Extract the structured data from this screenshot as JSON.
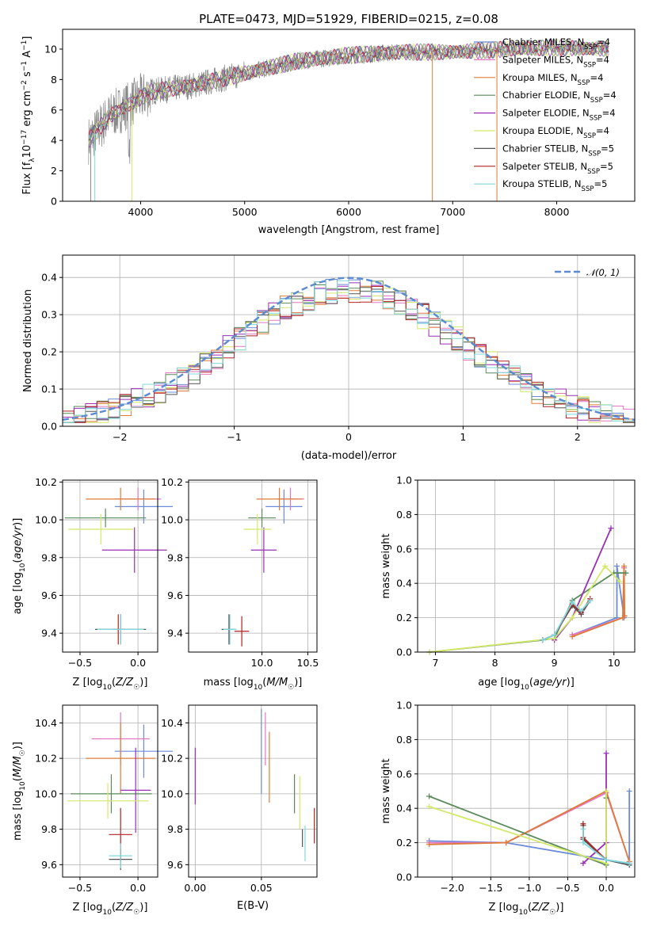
{
  "title": "PLATE=0473, MJD=51929, FIBERID=0215, z=0.08",
  "colors": {
    "chabrier_miles": "#6b8bd9",
    "salpeter_miles": "#e377c2",
    "kroupa_miles": "#e07b39",
    "chabrier_elodie": "#5a8a5a",
    "salpeter_elodie": "#9a2fb5",
    "kroupa_elodie": "#d4e86a",
    "chabrier_stelib": "#555555",
    "salpeter_stelib": "#b22222",
    "kroupa_stelib": "#80d8dc",
    "data": "#888888",
    "normal": "#5b8bd0"
  },
  "chart_data": [
    {
      "id": "spectrum",
      "type": "line",
      "xlabel": "wavelength [Angstrom, rest frame]",
      "ylabel": "Flux [f_λ10^-17 erg cm^-2 s^-1 A^-1]",
      "xlim": [
        3250,
        8750
      ],
      "ylim": [
        0,
        11.3
      ],
      "xticks": [
        "4000",
        "5000",
        "6000",
        "7000",
        "8000"
      ],
      "yticks": [
        "0",
        "2",
        "4",
        "6",
        "8",
        "10"
      ],
      "legend_position": "top-right",
      "legend": [
        {
          "base": "Chabrier MILES, N",
          "sub": "SSP",
          "tail": "=4",
          "color_key": "chabrier_miles"
        },
        {
          "base": "Salpeter MILES, N",
          "sub": "SSP",
          "tail": "=4",
          "color_key": "salpeter_miles"
        },
        {
          "base": "Kroupa MILES, N",
          "sub": "SSP",
          "tail": "=4",
          "color_key": "kroupa_miles"
        },
        {
          "base": "Chabrier ELODIE, N",
          "sub": "SSP",
          "tail": "=4",
          "color_key": "chabrier_elodie"
        },
        {
          "base": "Salpeter ELODIE, N",
          "sub": "SSP",
          "tail": "=4",
          "color_key": "salpeter_elodie"
        },
        {
          "base": "Kroupa ELODIE, N",
          "sub": "SSP",
          "tail": "=4",
          "color_key": "kroupa_elodie"
        },
        {
          "base": "Chabrier STELIB, N",
          "sub": "SSP",
          "tail": "=5",
          "color_key": "chabrier_stelib"
        },
        {
          "base": "Salpeter STELIB, N",
          "sub": "SSP",
          "tail": "=5",
          "color_key": "salpeter_stelib"
        },
        {
          "base": "Kroupa STELIB, N",
          "sub": "SSP",
          "tail": "=5",
          "color_key": "kroupa_stelib"
        }
      ],
      "data_range": [
        3500,
        8500
      ],
      "continuum": [
        [
          3500,
          4.0
        ],
        [
          3700,
          5.6
        ],
        [
          3950,
          6.6
        ],
        [
          4100,
          7.2
        ],
        [
          4500,
          7.6
        ],
        [
          5000,
          8.4
        ],
        [
          5500,
          9.2
        ],
        [
          6000,
          9.6
        ],
        [
          6500,
          9.8
        ],
        [
          7000,
          9.8
        ],
        [
          7500,
          10.0
        ],
        [
          8000,
          10.1
        ],
        [
          8500,
          10.0
        ]
      ]
    },
    {
      "id": "residuals",
      "type": "line",
      "xlabel": "(data-model)/error",
      "ylabel": "Normed distribution",
      "xlim": [
        -2.5,
        2.5
      ],
      "ylim": [
        0,
        0.46
      ],
      "xticks": [
        "−2",
        "−1",
        "0",
        "1",
        "2"
      ],
      "yticks": [
        "0.0",
        "0.1",
        "0.2",
        "0.3",
        "0.4"
      ],
      "grid": true,
      "legend_position": "top-right",
      "normal_label": "𝒩(0, 1)",
      "bin_width": 0.1,
      "normal_pdf": "mean 0, sigma 1"
    },
    {
      "id": "z_age",
      "type": "scatter",
      "xlabel": "Z [log10(Z/Z☉)]",
      "ylabel": "age [log10(age/yr)]",
      "xlim": [
        -0.65,
        0.17
      ],
      "ylim": [
        9.3,
        10.21
      ],
      "xticks": [
        "−0.5",
        "0.0"
      ],
      "yticks": [
        "9.4",
        "9.6",
        "9.8",
        "10.0",
        "10.2"
      ],
      "grid": true,
      "points": [
        {
          "model": "chabrier_miles",
          "x": 0.05,
          "xerr": 0.25,
          "y": 10.07,
          "yerr": 0.09
        },
        {
          "model": "salpeter_miles",
          "x": 0.0,
          "xerr": 0.2,
          "y": 10.11,
          "yerr": 0.06
        },
        {
          "model": "kroupa_miles",
          "x": -0.15,
          "xerr": 0.3,
          "y": 10.11,
          "yerr": 0.06
        },
        {
          "model": "chabrier_elodie",
          "x": -0.28,
          "xerr": 0.35,
          "y": 10.01,
          "yerr": 0.05
        },
        {
          "model": "salpeter_elodie",
          "x": -0.03,
          "xerr": 0.28,
          "y": 9.84,
          "yerr": 0.12
        },
        {
          "model": "kroupa_elodie",
          "x": -0.32,
          "xerr": 0.28,
          "y": 9.95,
          "yerr": 0.08
        },
        {
          "model": "chabrier_stelib",
          "x": -0.15,
          "xerr": 0.22,
          "y": 9.42,
          "yerr": 0.08
        },
        {
          "model": "salpeter_stelib",
          "x": -0.17,
          "xerr": 0.05,
          "y": 9.42,
          "yerr": 0.08
        },
        {
          "model": "kroupa_stelib",
          "x": -0.15,
          "xerr": 0.2,
          "y": 9.42,
          "yerr": 0.08
        }
      ]
    },
    {
      "id": "mass_age",
      "type": "scatter",
      "xlabel": "mass [log10(M/M☉)]",
      "ylabel": "",
      "xlim": [
        9.2,
        10.6
      ],
      "ylim": [
        9.3,
        10.21
      ],
      "xticks": [
        "10.0",
        "10.5"
      ],
      "yticks": [
        "9.4",
        "9.6",
        "9.8",
        "10.0",
        "10.2"
      ],
      "grid": true,
      "points": [
        {
          "model": "chabrier_miles",
          "x": 10.24,
          "xerr": 0.2,
          "y": 10.07,
          "yerr": 0.09
        },
        {
          "model": "salpeter_miles",
          "x": 10.31,
          "xerr": 0.15,
          "y": 10.11,
          "yerr": 0.06
        },
        {
          "model": "kroupa_miles",
          "x": 10.19,
          "xerr": 0.25,
          "y": 10.11,
          "yerr": 0.06
        },
        {
          "model": "chabrier_elodie",
          "x": 10.0,
          "xerr": 0.15,
          "y": 10.01,
          "yerr": 0.05
        },
        {
          "model": "salpeter_elodie",
          "x": 10.02,
          "xerr": 0.14,
          "y": 9.84,
          "yerr": 0.12
        },
        {
          "model": "kroupa_elodie",
          "x": 9.95,
          "xerr": 0.15,
          "y": 9.95,
          "yerr": 0.08
        },
        {
          "model": "chabrier_stelib",
          "x": 9.64,
          "xerr": 0.08,
          "y": 9.42,
          "yerr": 0.08
        },
        {
          "model": "salpeter_stelib",
          "x": 9.78,
          "xerr": 0.08,
          "y": 9.41,
          "yerr": 0.08
        },
        {
          "model": "kroupa_stelib",
          "x": 9.65,
          "xerr": 0.07,
          "y": 9.42,
          "yerr": 0.08
        }
      ]
    },
    {
      "id": "age_weight",
      "type": "line",
      "xlabel": "age  [log10(age/yr)]",
      "ylabel": "mass weight",
      "xlim": [
        6.7,
        10.35
      ],
      "ylim": [
        0,
        1.0
      ],
      "xticks": [
        "7",
        "8",
        "9",
        "10"
      ],
      "yticks": [
        "0.0",
        "0.2",
        "0.4",
        "0.6",
        "0.8",
        "1.0"
      ],
      "grid": true,
      "series": [
        {
          "model": "chabrier_miles",
          "x": [
            9.3,
            10.05,
            10.05,
            10.17
          ],
          "y": [
            0.1,
            0.2,
            0.5,
            0.2
          ]
        },
        {
          "model": "salpeter_miles",
          "x": [
            9.3,
            10.15,
            10.17
          ],
          "y": [
            0.1,
            0.2,
            0.49
          ]
        },
        {
          "model": "kroupa_miles",
          "x": [
            9.3,
            10.15,
            10.17,
            10.18
          ],
          "y": [
            0.09,
            0.2,
            0.5,
            0.21
          ]
        },
        {
          "model": "chabrier_elodie",
          "x": [
            6.9,
            8.8,
            9.0,
            9.3,
            10.0,
            10.2
          ],
          "y": [
            0.0,
            0.07,
            0.08,
            0.3,
            0.46,
            0.46
          ]
        },
        {
          "model": "salpeter_elodie",
          "x": [
            9.0,
            9.3,
            9.95
          ],
          "y": [
            0.07,
            0.2,
            0.72
          ]
        },
        {
          "model": "kroupa_elodie",
          "x": [
            6.9,
            9.0,
            9.3,
            9.85,
            10.1
          ],
          "y": [
            0.0,
            0.08,
            0.2,
            0.5,
            0.41
          ]
        },
        {
          "model": "chabrier_stelib",
          "x": [
            8.8,
            9.0,
            9.3,
            9.45,
            9.6
          ],
          "y": [
            0.07,
            0.1,
            0.27,
            0.22,
            0.3
          ]
        },
        {
          "model": "salpeter_stelib",
          "x": [
            8.8,
            9.0,
            9.3,
            9.45,
            9.6
          ],
          "y": [
            0.07,
            0.1,
            0.28,
            0.23,
            0.31
          ]
        },
        {
          "model": "kroupa_stelib",
          "x": [
            8.8,
            9.0,
            9.3,
            9.45,
            9.6
          ],
          "y": [
            0.07,
            0.1,
            0.29,
            0.24,
            0.3
          ]
        }
      ]
    },
    {
      "id": "z_mass",
      "type": "scatter",
      "xlabel": "Z [log10(Z/Z☉)]",
      "ylabel": "mass [log10(M/M☉)]",
      "xlim": [
        -0.65,
        0.17
      ],
      "ylim": [
        9.53,
        10.5
      ],
      "xticks": [
        "−0.5",
        "0.0"
      ],
      "yticks": [
        "9.6",
        "9.8",
        "10.0",
        "10.2",
        "10.4"
      ],
      "grid": true,
      "points": [
        {
          "model": "chabrier_miles",
          "x": 0.05,
          "xerr": 0.25,
          "y": 10.24,
          "yerr": 0.15
        },
        {
          "model": "salpeter_miles",
          "x": -0.15,
          "xerr": 0.25,
          "y": 10.31,
          "yerr": 0.15
        },
        {
          "model": "kroupa_miles",
          "x": -0.15,
          "xerr": 0.3,
          "y": 10.2,
          "yerr": 0.2
        },
        {
          "model": "chabrier_elodie",
          "x": -0.23,
          "xerr": 0.35,
          "y": 10.0,
          "yerr": 0.11
        },
        {
          "model": "salpeter_elodie",
          "x": -0.02,
          "xerr": 0.13,
          "y": 10.02,
          "yerr": 0.24
        },
        {
          "model": "kroupa_elodie",
          "x": -0.26,
          "xerr": 0.35,
          "y": 9.96,
          "yerr": 0.1
        },
        {
          "model": "chabrier_stelib",
          "x": -0.15,
          "xerr": 0.1,
          "y": 9.63,
          "yerr": 0.06
        },
        {
          "model": "salpeter_stelib",
          "x": -0.15,
          "xerr": 0.1,
          "y": 9.77,
          "yerr": 0.15
        },
        {
          "model": "kroupa_stelib",
          "x": -0.15,
          "xerr": 0.1,
          "y": 9.65,
          "yerr": 0.07
        }
      ]
    },
    {
      "id": "ebv_mass",
      "type": "scatter",
      "xlabel": "E(B-V)",
      "ylabel": "",
      "xlim": [
        -0.005,
        0.092
      ],
      "ylim": [
        9.53,
        10.5
      ],
      "xticks": [
        "0.00",
        "0.05"
      ],
      "yticks": [
        "9.6",
        "9.8",
        "10.0",
        "10.2",
        "10.4"
      ],
      "grid": true,
      "points": [
        {
          "model": "chabrier_miles",
          "x": 0.05,
          "y": 10.24,
          "yerr": 0.24
        },
        {
          "model": "salpeter_miles",
          "x": 0.053,
          "y": 10.31,
          "yerr": 0.15
        },
        {
          "model": "kroupa_miles",
          "x": 0.056,
          "y": 10.15,
          "yerr": 0.2
        },
        {
          "model": "chabrier_elodie",
          "x": 0.075,
          "y": 10.0,
          "yerr": 0.11
        },
        {
          "model": "salpeter_elodie",
          "x": 0.0,
          "y": 10.1,
          "yerr": 0.16
        },
        {
          "model": "kroupa_elodie",
          "x": 0.079,
          "y": 9.95,
          "yerr": 0.15
        },
        {
          "model": "chabrier_stelib",
          "x": 0.081,
          "y": 9.75,
          "yerr": 0.05
        },
        {
          "model": "salpeter_stelib",
          "x": 0.09,
          "y": 9.82,
          "yerr": 0.1
        },
        {
          "model": "kroupa_stelib",
          "x": 0.083,
          "y": 9.72,
          "yerr": 0.1
        }
      ]
    },
    {
      "id": "z_weight",
      "type": "line",
      "xlabel": "Z [log10(Z/Z☉)]",
      "ylabel": "mass weight",
      "xlim": [
        -2.45,
        0.37
      ],
      "ylim": [
        0,
        1.0
      ],
      "xticks": [
        "−2.0",
        "−1.5",
        "−1.0",
        "−0.5",
        "0.0"
      ],
      "yticks": [
        "0.0",
        "0.2",
        "0.4",
        "0.6",
        "0.8",
        "1.0"
      ],
      "grid": true,
      "series": [
        {
          "model": "chabrier_miles",
          "x": [
            -2.3,
            -1.3,
            0.0,
            0.3,
            0.3
          ],
          "y": [
            0.21,
            0.2,
            0.1,
            0.08,
            0.5
          ]
        },
        {
          "model": "salpeter_miles",
          "x": [
            -2.3,
            -1.3,
            0.0,
            0.3
          ],
          "y": [
            0.2,
            0.2,
            0.49,
            0.09
          ]
        },
        {
          "model": "kroupa_miles",
          "x": [
            -2.3,
            -1.3,
            0.0,
            0.3
          ],
          "y": [
            0.19,
            0.2,
            0.5,
            0.09
          ]
        },
        {
          "model": "chabrier_elodie",
          "x": [
            -2.3,
            0.0,
            0.0
          ],
          "y": [
            0.47,
            0.07,
            0.46
          ]
        },
        {
          "model": "salpeter_elodie",
          "x": [
            -0.3,
            0.0,
            0.0
          ],
          "y": [
            0.08,
            0.2,
            0.72
          ]
        },
        {
          "model": "kroupa_elodie",
          "x": [
            -2.3,
            0.0,
            0.0
          ],
          "y": [
            0.41,
            0.08,
            0.5
          ]
        },
        {
          "model": "chabrier_stelib",
          "x": [
            -0.3,
            -0.3,
            0.0,
            0.3
          ],
          "y": [
            0.3,
            0.22,
            0.1,
            0.07
          ]
        },
        {
          "model": "salpeter_stelib",
          "x": [
            -0.3,
            -0.3,
            0.0
          ],
          "y": [
            0.31,
            0.23,
            0.1
          ]
        },
        {
          "model": "kroupa_stelib",
          "x": [
            -0.3,
            -0.3,
            0.0,
            0.3
          ],
          "y": [
            0.28,
            0.2,
            0.1,
            0.08
          ]
        }
      ]
    }
  ]
}
